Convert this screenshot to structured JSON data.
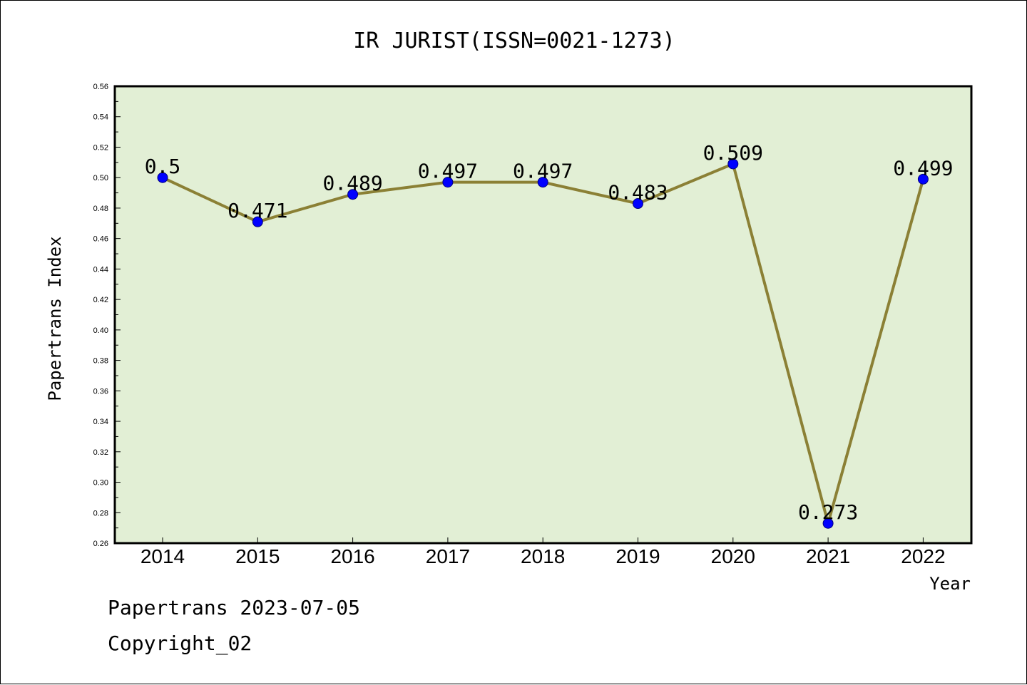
{
  "chart_data": {
    "type": "line",
    "title": "IR JURIST(ISSN=0021-1273)",
    "xlabel": "Year",
    "ylabel": "Papertrans Index",
    "categories": [
      "2014",
      "2015",
      "2016",
      "2017",
      "2018",
      "2019",
      "2020",
      "2021",
      "2022"
    ],
    "series": [
      {
        "values": [
          0.5,
          0.471,
          0.489,
          0.497,
          0.497,
          0.483,
          0.509,
          0.273,
          0.499
        ],
        "labels": [
          "0.5",
          "0.471",
          "0.489",
          "0.497",
          "0.497",
          "0.483",
          "0.509",
          "0.273",
          "0.499"
        ]
      }
    ],
    "ylim": [
      0.26,
      0.56
    ],
    "yticks": [
      "0.26",
      "0.28",
      "0.30",
      "0.32",
      "0.34",
      "0.36",
      "0.38",
      "0.40",
      "0.42",
      "0.44",
      "0.46",
      "0.48",
      "0.50",
      "0.52",
      "0.54",
      "0.56"
    ],
    "grid": false,
    "colors": {
      "plot_background": "#e2efd5",
      "line": "#8b8035",
      "marker": "#0000ff"
    }
  },
  "footer": {
    "line1": "Papertrans 2023-07-05",
    "line2": "Copyright_02"
  }
}
